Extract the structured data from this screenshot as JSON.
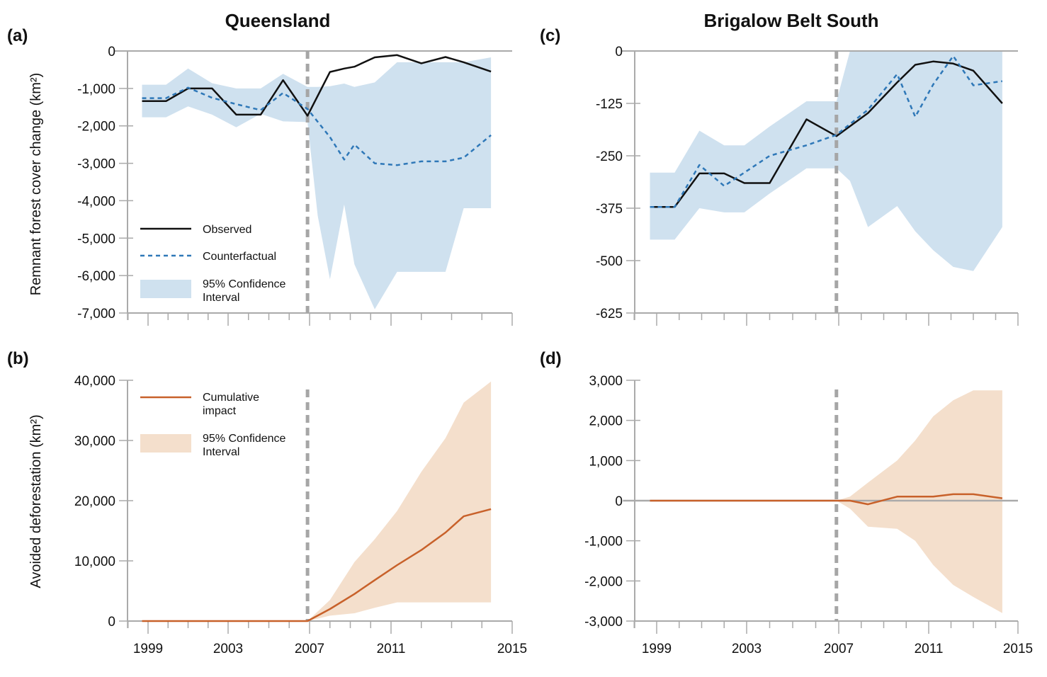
{
  "colors": {
    "observed": "#111111",
    "counterfactual": "#2f78b8",
    "ci_blue": "#cfe1ef",
    "impact": "#c8612a",
    "ci_orange": "#f4dfcc",
    "axis": "#aaaaaa",
    "policy_line": "#a6a6a6"
  },
  "column_titles": [
    "Queensland",
    "Brigalow Belt South"
  ],
  "chart_data": [
    {
      "id": "a",
      "panel_label": "(a)",
      "type": "line",
      "title": "Queensland",
      "ylabel": "Remnant forest cover change (km²)",
      "xlabel": "",
      "xlim": [
        1998,
        2015
      ],
      "x_ticks": [
        1999,
        2003,
        2007,
        2011,
        2015
      ],
      "show_x_tick_labels": false,
      "ylim": [
        -7000,
        0
      ],
      "y_ticks": [
        0,
        -1000,
        -2000,
        -3000,
        -4000,
        -5000,
        -6000,
        -7000
      ],
      "y_tick_labels": [
        "0",
        "-1,000",
        "-2,000",
        "-3,000",
        "-4,000",
        "-5,000",
        "-6,000",
        "-7,000"
      ],
      "policy_year": 2006.9,
      "legend": {
        "position": "bottom-left",
        "entries": [
          "Observed",
          "Counterfactual",
          "95% Confidence Interval"
        ]
      },
      "series": [
        {
          "name": "Observed",
          "style": "solid",
          "x": [
            1998.7,
            1999.9,
            2001.0,
            2002.2,
            2003.4,
            2004.6,
            2005.7,
            2006.9,
            2008.0,
            2008.7,
            2009.2,
            2010.2,
            2011.2,
            2012.0,
            2012.8,
            2013.4,
            2014.3
          ],
          "y": [
            -1340,
            -1340,
            -1000,
            -1000,
            -1700,
            -1700,
            -780,
            -1730,
            -560,
            -470,
            -420,
            -170,
            -110,
            -330,
            -160,
            -300,
            -550
          ]
        },
        {
          "name": "Counterfactual",
          "style": "dashed",
          "x": [
            1998.7,
            1999.9,
            2001.0,
            2002.2,
            2003.4,
            2004.6,
            2005.7,
            2006.9,
            2008.0,
            2008.7,
            2009.2,
            2010.2,
            2011.2,
            2012.0,
            2012.8,
            2013.4,
            2014.3
          ],
          "y": [
            -1260,
            -1260,
            -980,
            -1250,
            -1420,
            -1580,
            -1120,
            -1550,
            -2300,
            -2900,
            -2500,
            -3000,
            -3050,
            -2950,
            -2950,
            -2850,
            -2250
          ]
        }
      ],
      "ci": {
        "x": [
          1998.7,
          1999.9,
          2001.0,
          2002.2,
          2003.4,
          2004.6,
          2005.7,
          2006.9,
          2007.4,
          2008.0,
          2008.7,
          2009.2,
          2010.2,
          2011.2,
          2012.0,
          2012.8,
          2013.4,
          2014.3
        ],
        "upper": [
          -900,
          -900,
          -470,
          -860,
          -1000,
          -1000,
          -610,
          -960,
          -960,
          -940,
          -870,
          -960,
          -840,
          -300,
          -300,
          -300,
          -300,
          -170
        ],
        "lower": [
          -1770,
          -1770,
          -1480,
          -1700,
          -2040,
          -1680,
          -1880,
          -1900,
          -4400,
          -6100,
          -4100,
          -5700,
          -6900,
          -5900,
          -5900,
          -5900,
          -4200,
          -4200
        ]
      }
    },
    {
      "id": "b",
      "panel_label": "(b)",
      "type": "line",
      "title": "",
      "ylabel": "Avoided deforestation (km²)",
      "xlabel": "",
      "xlim": [
        1998,
        2015
      ],
      "x_ticks": [
        1999,
        2003,
        2007,
        2011,
        2015
      ],
      "x_tick_labels": [
        "1999",
        "2003",
        "2007",
        "2011",
        "2015"
      ],
      "ylim": [
        0,
        40000
      ],
      "y_ticks": [
        0,
        10000,
        20000,
        30000,
        40000
      ],
      "y_tick_labels": [
        "0",
        "10,000",
        "20,000",
        "30,000",
        "40,000"
      ],
      "policy_year": 2006.9,
      "legend": {
        "position": "top-left",
        "entries": [
          "Cumulative impact",
          "95% Confidence Interval"
        ]
      },
      "series": [
        {
          "name": "Cumulative impact",
          "style": "solid",
          "x": [
            1998.7,
            2006.9,
            2008.0,
            2009.2,
            2010.2,
            2011.2,
            2012.0,
            2012.8,
            2013.4,
            2014.3
          ],
          "y": [
            0,
            0,
            2000,
            4500,
            6800,
            9300,
            11800,
            14700,
            17400,
            18600
          ]
        }
      ],
      "ci": {
        "x": [
          2006.9,
          2008.0,
          2009.2,
          2010.2,
          2011.2,
          2012.0,
          2012.8,
          2013.4,
          2014.3
        ],
        "upper": [
          0,
          3500,
          9800,
          13600,
          18300,
          24800,
          30400,
          36300,
          39800
        ],
        "lower": [
          0,
          900,
          1300,
          2200,
          3100,
          3100,
          3100,
          3100,
          3100
        ]
      }
    },
    {
      "id": "c",
      "panel_label": "(c)",
      "type": "line",
      "title": "Brigalow Belt South",
      "ylabel": "",
      "xlabel": "",
      "xlim": [
        1997.5,
        2015
      ],
      "x_ticks": [
        1999,
        2003,
        2007,
        2011,
        2015
      ],
      "show_x_tick_labels": false,
      "ylim": [
        -625,
        0
      ],
      "y_ticks": [
        0,
        -125,
        -250,
        -375,
        -500,
        -625
      ],
      "y_tick_labels": [
        "0",
        "-125",
        "-250",
        "-375",
        "-500",
        "-625"
      ],
      "policy_year": 2006.9,
      "legend": null,
      "series": [
        {
          "name": "Observed",
          "style": "solid",
          "x": [
            1998.7,
            1999.8,
            2000.9,
            2002.0,
            2002.9,
            2004.0,
            2005.6,
            2006.9,
            2008.3,
            2009.6,
            2010.4,
            2011.2,
            2012.1,
            2013.0,
            2014.3
          ],
          "y": [
            -372,
            -372,
            -292,
            -292,
            -315,
            -315,
            -163,
            -203,
            -148,
            -75,
            -33,
            -25,
            -30,
            -47,
            -125
          ]
        },
        {
          "name": "Counterfactual",
          "style": "dashed",
          "x": [
            1998.7,
            1999.8,
            2000.9,
            2002.0,
            2002.9,
            2004.0,
            2005.6,
            2006.9,
            2008.3,
            2009.6,
            2010.4,
            2011.2,
            2012.1,
            2013.0,
            2014.3
          ],
          "y": [
            -372,
            -372,
            -272,
            -322,
            -290,
            -250,
            -225,
            -200,
            -140,
            -55,
            -157,
            -80,
            -12,
            -82,
            -72
          ]
        }
      ],
      "ci": {
        "x": [
          1998.7,
          1999.8,
          2000.9,
          2002.0,
          2002.9,
          2004.0,
          2005.6,
          2006.9,
          2007.5,
          2008.3,
          2009.6,
          2010.4,
          2011.2,
          2012.1,
          2013.0,
          2014.3
        ],
        "upper": [
          -290,
          -290,
          -190,
          -225,
          -225,
          -180,
          -120,
          -120,
          0,
          0,
          0,
          0,
          0,
          0,
          0,
          0
        ],
        "lower": [
          -450,
          -450,
          -375,
          -385,
          -385,
          -340,
          -280,
          -280,
          -310,
          -420,
          -370,
          -430,
          -475,
          -515,
          -525,
          -420
        ]
      }
    },
    {
      "id": "d",
      "panel_label": "(d)",
      "type": "line",
      "title": "",
      "ylabel": "",
      "xlabel": "",
      "xlim": [
        1997.5,
        2015
      ],
      "x_ticks": [
        1999,
        2003,
        2007,
        2011,
        2015
      ],
      "x_tick_labels": [
        "1999",
        "2003",
        "2007",
        "2011",
        "2015"
      ],
      "ylim": [
        -3000,
        3000
      ],
      "y_ticks": [
        3000,
        2000,
        1000,
        0,
        -1000,
        -2000,
        -3000
      ],
      "y_tick_labels": [
        "3,000",
        "2,000",
        "1,000",
        "0",
        "-1,000",
        "-2,000",
        "-3,000"
      ],
      "policy_year": 2006.9,
      "legend": null,
      "series": [
        {
          "name": "Cumulative impact",
          "style": "solid",
          "x": [
            1998.7,
            2006.9,
            2007.5,
            2008.3,
            2009.6,
            2010.4,
            2011.2,
            2012.1,
            2013.0,
            2014.3
          ],
          "y": [
            0,
            0,
            0,
            -90,
            100,
            100,
            100,
            160,
            160,
            60
          ]
        },
        {
          "name": "Zero line",
          "style": "axis",
          "x": [
            1997.5,
            2015
          ],
          "y": [
            0,
            0
          ]
        }
      ],
      "ci": {
        "x": [
          2006.9,
          2007.5,
          2008.3,
          2009.6,
          2010.4,
          2011.2,
          2012.1,
          2013.0,
          2014.3
        ],
        "upper": [
          0,
          100,
          450,
          1000,
          1500,
          2100,
          2500,
          2750,
          2750
        ],
        "lower": [
          0,
          -200,
          -650,
          -700,
          -1000,
          -1600,
          -2100,
          -2400,
          -2800
        ]
      }
    }
  ]
}
